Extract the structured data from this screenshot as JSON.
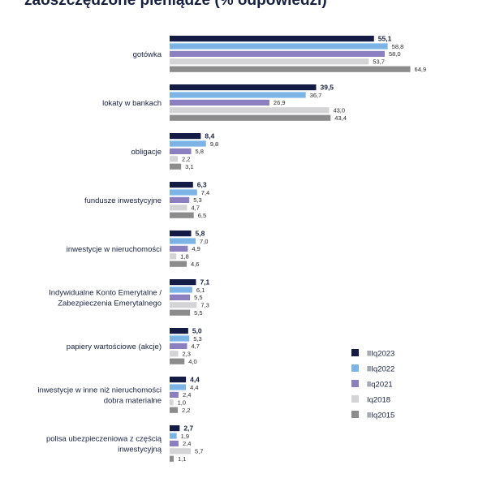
{
  "chart_data": {
    "type": "bar",
    "orientation": "horizontal",
    "title": "zaoszczędzone pieniądze (% odpowiedzi)",
    "categories": [
      [
        "gotówka"
      ],
      [
        "lokaty w bankach"
      ],
      [
        "obligacje"
      ],
      [
        "fundusze inwestycyjne"
      ],
      [
        "inwestycje w nieruchomości"
      ],
      [
        "Indywidualne Konto Emerytalne /",
        "Zabezpieczenia Emerytalnego"
      ],
      [
        "papiery wartościowe (akcje)"
      ],
      [
        "inwestycje w inne niż nieruchomości",
        "dobra materialne"
      ],
      [
        "polisa ubezpieczeniowa z częścią",
        "inwestycyjną"
      ]
    ],
    "series": [
      {
        "name": "IIIq2023",
        "color": "#141c45",
        "values": [
          55.1,
          39.5,
          8.4,
          6.3,
          5.8,
          7.1,
          5.0,
          4.4,
          2.7
        ]
      },
      {
        "name": "IIIq2022",
        "color": "#7db4e6",
        "values": [
          58.8,
          36.7,
          9.8,
          7.4,
          7.0,
          6.1,
          5.3,
          4.4,
          1.9
        ]
      },
      {
        "name": "IIq2021",
        "color": "#8c7fc0",
        "values": [
          58.0,
          26.9,
          5.8,
          5.3,
          4.9,
          5.5,
          4.7,
          2.4,
          2.4
        ]
      },
      {
        "name": "Iq2018",
        "color": "#d4d4d6",
        "values": [
          53.7,
          43.0,
          2.2,
          4.7,
          1.8,
          7.3,
          2.3,
          1.0,
          5.7
        ]
      },
      {
        "name": "IIIq2015",
        "color": "#8c8c8c",
        "values": [
          64.9,
          43.4,
          3.1,
          6.5,
          4.6,
          5.5,
          4.0,
          2.2,
          1.1
        ]
      }
    ],
    "xlim": [
      0,
      65
    ],
    "grid": false,
    "legend": "bottom-right",
    "decimal_separator": ","
  }
}
